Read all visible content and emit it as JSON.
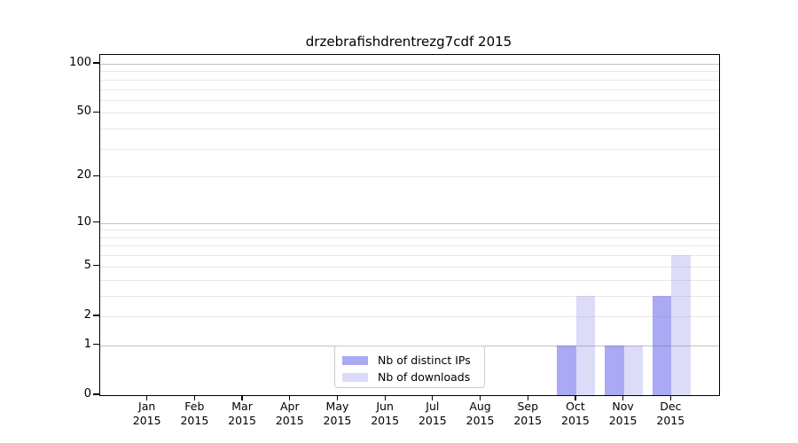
{
  "title": "drzebrafishdrentrezg7cdf 2015",
  "chart_data": {
    "type": "bar",
    "title": "drzebrafishdrentrezg7cdf 2015",
    "categories": [
      "Jan 2015",
      "Feb 2015",
      "Mar 2015",
      "Apr 2015",
      "May 2015",
      "Jun 2015",
      "Jul 2015",
      "Aug 2015",
      "Sep 2015",
      "Oct 2015",
      "Nov 2015",
      "Dec 2015"
    ],
    "series": [
      {
        "name": "Nb of distinct IPs",
        "color": "#a9a9f4",
        "values": [
          0,
          0,
          0,
          0,
          0,
          0,
          0,
          0,
          0,
          1,
          1,
          3
        ]
      },
      {
        "name": "Nb of downloads",
        "color": "#dcdcf8",
        "values": [
          0,
          0,
          0,
          0,
          0,
          0,
          0,
          0,
          0,
          3,
          1,
          6
        ]
      }
    ],
    "xlabel": "",
    "ylabel": "",
    "yticks": [
      0,
      1,
      2,
      5,
      10,
      20,
      50,
      100
    ],
    "major_gridlines": [
      1,
      10,
      100
    ],
    "minor_gridlines": [
      2,
      3,
      4,
      5,
      6,
      7,
      8,
      9,
      20,
      30,
      40,
      50,
      60,
      70,
      80,
      90
    ],
    "scale": "log1p",
    "ylim": [
      0,
      112
    ],
    "grid": true,
    "legend_position": "lower center"
  },
  "legend": {
    "items": [
      {
        "label": "Nb of distinct IPs",
        "color": "#a9a9f4"
      },
      {
        "label": "Nb of downloads",
        "color": "#dcdcf8"
      }
    ]
  },
  "colors": {
    "bar_distinct_ips": "#a9a9f4",
    "bar_downloads": "#dcdcf8",
    "spine": "#000000",
    "background": "#ffffff"
  }
}
